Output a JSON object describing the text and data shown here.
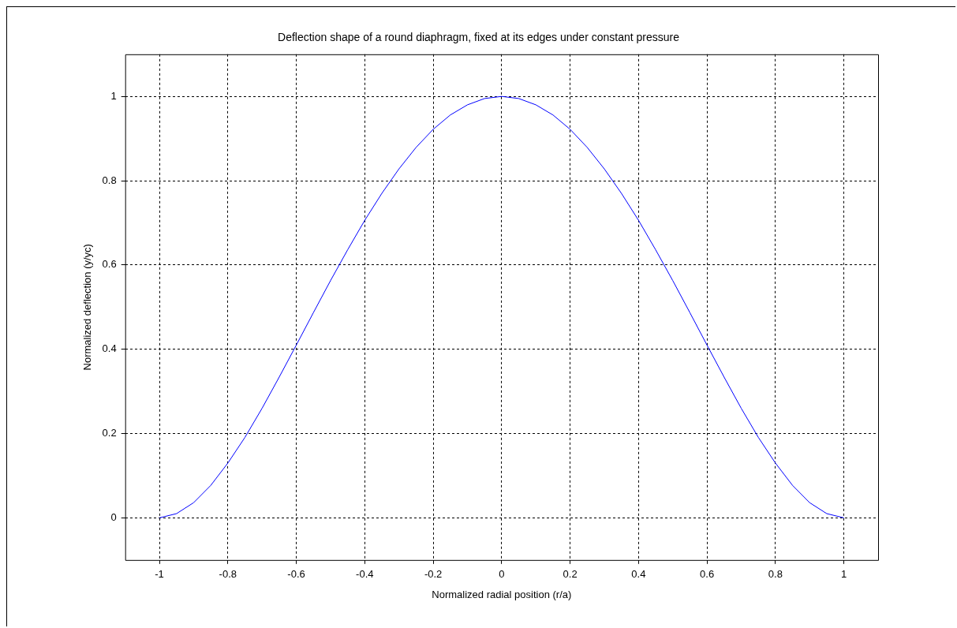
{
  "chart_data": {
    "type": "line",
    "title": "Deflection shape of a round diaphragm, fixed at its edges under constant pressure",
    "xlabel": "Normalized radial position (r/a)",
    "ylabel": "Normalized deflection (y/yc)",
    "x": [
      -1,
      -0.95,
      -0.9,
      -0.85,
      -0.8,
      -0.75,
      -0.7,
      -0.65,
      -0.6,
      -0.55,
      -0.5,
      -0.45,
      -0.4,
      -0.35,
      -0.3,
      -0.25,
      -0.2,
      -0.15,
      -0.1,
      -0.05,
      0,
      0.05,
      0.1,
      0.15,
      0.2,
      0.25,
      0.3,
      0.35,
      0.4,
      0.45,
      0.5,
      0.55,
      0.6,
      0.65,
      0.7,
      0.75,
      0.8,
      0.85,
      0.9,
      0.95,
      1
    ],
    "series": [
      {
        "color": "#0000ff",
        "values": [
          0,
          0.01,
          0.036,
          0.077,
          0.13,
          0.191,
          0.26,
          0.334,
          0.41,
          0.487,
          0.563,
          0.636,
          0.706,
          0.77,
          0.828,
          0.879,
          0.922,
          0.956,
          0.98,
          0.995,
          1,
          0.995,
          0.98,
          0.956,
          0.922,
          0.879,
          0.828,
          0.77,
          0.706,
          0.636,
          0.563,
          0.487,
          0.41,
          0.334,
          0.26,
          0.191,
          0.13,
          0.077,
          0.036,
          0.01,
          0
        ]
      }
    ],
    "xlim": [
      -1.1,
      1.1
    ],
    "xticks": [
      -1,
      -0.8,
      -0.6,
      -0.4,
      -0.2,
      0,
      0.2,
      0.4,
      0.6,
      0.8,
      1
    ],
    "ylim": [
      -0.1,
      1.1
    ],
    "yticks": [
      0,
      0.2,
      0.4,
      0.6,
      0.8,
      1
    ],
    "grid": true,
    "legend": false,
    "marker": "none",
    "line_style": "solid"
  }
}
